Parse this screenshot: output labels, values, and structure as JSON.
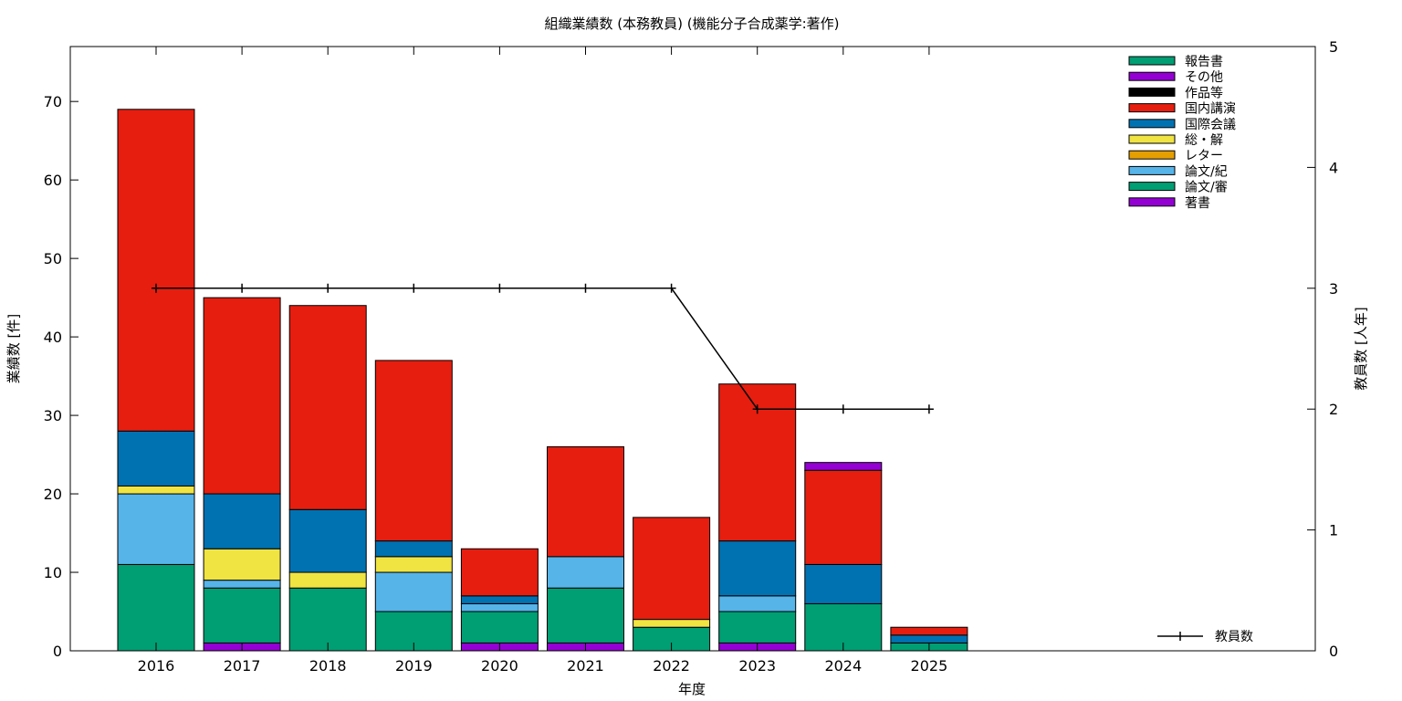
{
  "chart_data": {
    "type": "bar",
    "title": "組織業績数 (本務教員) (機能分子合成薬学:著作)",
    "xlabel": "年度",
    "ylabel": "業績数 [件]",
    "y2label": "教員数 [人年]",
    "ylim": [
      0,
      77
    ],
    "y2lim": [
      0,
      5
    ],
    "yticks": [
      0,
      10,
      20,
      30,
      40,
      50,
      60,
      70
    ],
    "y2ticks": [
      0,
      1,
      2,
      3,
      4,
      5
    ],
    "stacked": true,
    "grid": false,
    "legend_position": "top-right",
    "categories": [
      "2016",
      "2017",
      "2018",
      "2019",
      "2020",
      "2021",
      "2022",
      "2023",
      "2024",
      "2025"
    ],
    "series": [
      {
        "name": "著書",
        "color": "#9400d3",
        "values": [
          0,
          1,
          0,
          0,
          1,
          1,
          0,
          1,
          0,
          0
        ]
      },
      {
        "name": "論文/審",
        "color": "#009e73",
        "values": [
          11,
          7,
          8,
          5,
          4,
          7,
          3,
          4,
          6,
          1
        ]
      },
      {
        "name": "論文/紀",
        "color": "#56b4e9",
        "values": [
          9,
          1,
          0,
          5,
          1,
          4,
          0,
          2,
          0,
          0
        ]
      },
      {
        "name": "レター",
        "color": "#e69f00",
        "values": [
          0,
          0,
          0,
          0,
          0,
          0,
          0,
          0,
          0,
          0
        ]
      },
      {
        "name": "総・解",
        "color": "#f0e442",
        "values": [
          1,
          4,
          2,
          2,
          0,
          0,
          1,
          0,
          0,
          0
        ]
      },
      {
        "name": "国際会議",
        "color": "#0072b2",
        "values": [
          7,
          7,
          8,
          2,
          1,
          0,
          0,
          7,
          5,
          1
        ]
      },
      {
        "name": "国内講演",
        "color": "#e51e10",
        "values": [
          41,
          25,
          26,
          23,
          6,
          14,
          13,
          20,
          12,
          1
        ]
      },
      {
        "name": "作品等",
        "color": "#000000",
        "values": [
          0,
          0,
          0,
          0,
          0,
          0,
          0,
          0,
          0,
          0
        ]
      },
      {
        "name": "その他",
        "color": "#9400d3",
        "values": [
          0,
          0,
          0,
          0,
          0,
          0,
          0,
          0,
          1,
          0
        ]
      },
      {
        "name": "報告書",
        "color": "#009e73",
        "values": [
          0,
          0,
          0,
          0,
          0,
          0,
          0,
          0,
          0,
          0
        ]
      }
    ],
    "line_series": {
      "name": "教員数",
      "axis": "y2",
      "color": "#000000",
      "values": [
        3,
        3,
        3,
        3,
        3,
        3,
        3,
        2,
        2,
        2
      ]
    }
  }
}
